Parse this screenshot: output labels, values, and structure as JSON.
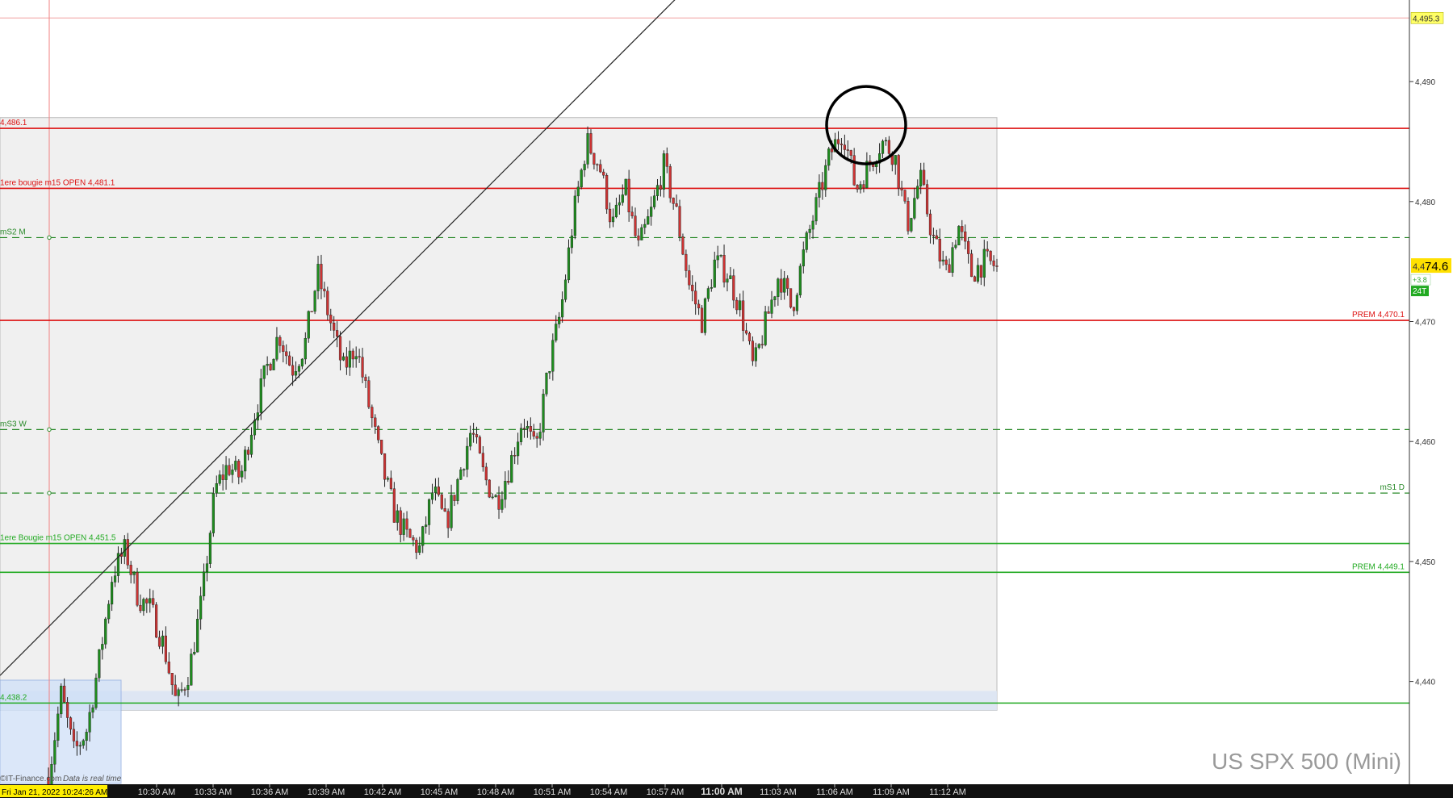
{
  "instrument_title": "US SPX 500 (Mini)",
  "watermark_text": "©IT-Finance.com",
  "realtime_note": "Data is real time",
  "crosshair_time_label": "Fri Jan 21, 2022 10:24:26 AM",
  "last_price_label": "4,474.6",
  "last_price_prefix": "4,4",
  "last_price_suffix": "74.6",
  "last_change_label": "+3.8",
  "tick_count_label": "24T",
  "top_price_label": "4,495.3",
  "colors": {
    "up_candle": "#1e8c1e",
    "down_candle": "#cc3333",
    "resistance_line": "#dd1111",
    "support_line": "#22aa22",
    "pivot_dash": "#2a8a2a",
    "range_box_fill": "#f0f0f0",
    "range_box_border": "#bbbbbb",
    "zone_fill": "#dbe4f3",
    "axis_bg": "#111111",
    "last_price_bg": "#ffe000"
  },
  "chart_data": {
    "type": "candlestick",
    "instrument": "US SPX 500 (Mini)",
    "y_axis": {
      "side": "right",
      "range": [
        4431.5,
        4496.8
      ],
      "ticks": [
        4440,
        4450,
        4460,
        4470,
        4480,
        4490
      ],
      "tick_labels": [
        "4,440",
        "4,450",
        "4,460",
        "4,470",
        "4,480",
        "4,490"
      ]
    },
    "x_axis": {
      "ticks": [
        {
          "label": "10:30 AM",
          "bold": false
        },
        {
          "label": "10:33 AM",
          "bold": false
        },
        {
          "label": "10:36 AM",
          "bold": false
        },
        {
          "label": "10:39 AM",
          "bold": false
        },
        {
          "label": "10:42 AM",
          "bold": false
        },
        {
          "label": "10:45 AM",
          "bold": false
        },
        {
          "label": "10:48 AM",
          "bold": false
        },
        {
          "label": "10:51 AM",
          "bold": false
        },
        {
          "label": "10:54 AM",
          "bold": false
        },
        {
          "label": "10:57 AM",
          "bold": false
        },
        {
          "label": "11:00 AM",
          "bold": true
        },
        {
          "label": "11:03 AM",
          "bold": false
        },
        {
          "label": "11:06 AM",
          "bold": false
        },
        {
          "label": "11:09 AM",
          "bold": false
        },
        {
          "label": "11:12 AM",
          "bold": false
        }
      ]
    },
    "price_path": [
      4432,
      4439,
      4434,
      4436,
      4442,
      4449,
      4451,
      4447,
      4446,
      4443,
      4438,
      4441,
      4447,
      4456,
      4458,
      4457,
      4462,
      4466,
      4469,
      4466,
      4468,
      4474,
      4470,
      4466,
      4468,
      4463,
      4458,
      4454,
      4452,
      4451,
      4456,
      4453,
      4457,
      4461,
      4457,
      4455,
      4458,
      4462,
      4459,
      4466,
      4471,
      4479,
      4485,
      4483,
      4478,
      4481,
      4476,
      4479,
      4483,
      4479,
      4473,
      4470,
      4475,
      4474,
      4471,
      4466,
      4470,
      4474,
      4471,
      4476,
      4480,
      4484,
      4486,
      4481,
      4483,
      4485,
      4484,
      4478,
      4482,
      4477,
      4474,
      4478,
      4474,
      4475,
      4474.6
    ],
    "horizontal_lines": [
      {
        "name": "H1",
        "label_left": "4,486.1",
        "label_right": "",
        "value": 4486.1,
        "style": "solid",
        "role": "resistance"
      },
      {
        "name": "H2",
        "label_left": "1ere bougie m15 OPEN 4,481.1",
        "label_right": "",
        "value": 4481.1,
        "style": "solid",
        "role": "resistance"
      },
      {
        "name": "P1",
        "label_left": "mS2 M",
        "label_right": "",
        "value": 4477,
        "style": "dashed",
        "role": "pivot"
      },
      {
        "name": "H3",
        "label_left": "",
        "label_right": "PREM 4,470.1",
        "value": 4470.1,
        "style": "solid",
        "role": "resistance"
      },
      {
        "name": "P2",
        "label_left": "mS3 W",
        "label_right": "",
        "value": 4461,
        "style": "dashed",
        "role": "pivot"
      },
      {
        "name": "P3",
        "label_left": "",
        "label_right": "mS1 D",
        "value": 4455.7,
        "style": "dashed",
        "role": "pivot"
      },
      {
        "name": "S1",
        "label_left": "1ere Bougie m15 OPEN 4,451.5",
        "label_right": "",
        "value": 4451.5,
        "style": "solid",
        "role": "support"
      },
      {
        "name": "S2",
        "label_left": "",
        "label_right": "PREM 4,449.1",
        "value": 4449.1,
        "style": "solid",
        "role": "support"
      },
      {
        "name": "S3",
        "label_left": "4,438.2",
        "label_right": "",
        "value": 4438.2,
        "style": "solid",
        "role": "support"
      }
    ],
    "top_reference_value": 4495.3,
    "annotations": [
      {
        "kind": "trendline",
        "from_value": 4440.5,
        "to_value": 4508
      },
      {
        "kind": "circle",
        "around_value": 4486.5
      },
      {
        "kind": "range_box",
        "from_value": 4438.2,
        "to_value": 4487
      }
    ]
  }
}
